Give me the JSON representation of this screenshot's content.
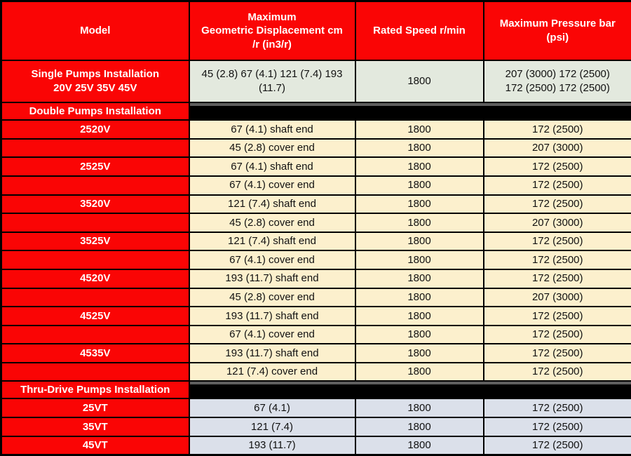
{
  "colors": {
    "header_red": "#fa0505",
    "section_black": "#000000",
    "section_highlight": "#5e5e5e",
    "single_row_bg": "#e3e9de",
    "double_rows_bg": "#fcf0cd",
    "thru_rows_bg": "#dbe0ea",
    "border": "#000000",
    "header_text": "#ffffff",
    "cell_text": "#111111"
  },
  "table": {
    "headers": [
      "Model",
      "Maximum\nGeometric Displacement cm\n/r (in3/r)",
      "Rated Speed r/min",
      "Maximum Pressure bar\n(psi)"
    ],
    "rows": [
      {
        "type": "single",
        "model": "Single Pumps Installation\n20V 25V 35V 45V",
        "displacement": "45 (2.8) 67 (4.1) 121 (7.4) 193\n(11.7)",
        "speed": "1800",
        "pressure": "207 (3000) 172 (2500)\n172 (2500) 172 (2500)"
      },
      {
        "type": "section",
        "model": "Double Pumps Installation"
      },
      {
        "type": "data",
        "theme": "cream",
        "model": "2520V",
        "displacement": "67 (4.1) shaft end",
        "speed": "1800",
        "pressure": "172 (2500)"
      },
      {
        "type": "data",
        "theme": "cream",
        "model": "",
        "displacement": "45 (2.8) cover end",
        "speed": "1800",
        "pressure": "207 (3000)"
      },
      {
        "type": "data",
        "theme": "cream",
        "model": "2525V",
        "displacement": "67 (4.1) shaft end",
        "speed": "1800",
        "pressure": "172 (2500)"
      },
      {
        "type": "data",
        "theme": "cream",
        "model": "",
        "displacement": "67 (4.1) cover end",
        "speed": "1800",
        "pressure": "172 (2500)"
      },
      {
        "type": "data",
        "theme": "cream",
        "model": "3520V",
        "displacement": "121 (7.4) shaft end",
        "speed": "1800",
        "pressure": "172 (2500)"
      },
      {
        "type": "data",
        "theme": "cream",
        "model": "",
        "displacement": "45 (2.8) cover end",
        "speed": "1800",
        "pressure": "207 (3000)"
      },
      {
        "type": "data",
        "theme": "cream",
        "model": "3525V",
        "displacement": "121 (7.4) shaft end",
        "speed": "1800",
        "pressure": "172 (2500)"
      },
      {
        "type": "data",
        "theme": "cream",
        "model": "",
        "displacement": "67 (4.1) cover end",
        "speed": "1800",
        "pressure": "172 (2500)"
      },
      {
        "type": "data",
        "theme": "cream",
        "model": "4520V",
        "displacement": "193 (11.7) shaft end",
        "speed": "1800",
        "pressure": "172 (2500)"
      },
      {
        "type": "data",
        "theme": "cream",
        "model": "",
        "displacement": "45 (2.8) cover end",
        "speed": "1800",
        "pressure": "207 (3000)"
      },
      {
        "type": "data",
        "theme": "cream",
        "model": "4525V",
        "displacement": "193 (11.7) shaft end",
        "speed": "1800",
        "pressure": "172 (2500)"
      },
      {
        "type": "data",
        "theme": "cream",
        "model": "",
        "displacement": "67 (4.1) cover end",
        "speed": "1800",
        "pressure": "172 (2500)"
      },
      {
        "type": "data",
        "theme": "cream",
        "model": "4535V",
        "displacement": "193 (11.7) shaft end",
        "speed": "1800",
        "pressure": "172 (2500)"
      },
      {
        "type": "data",
        "theme": "cream",
        "model": "",
        "displacement": "121 (7.4) cover end",
        "speed": "1800",
        "pressure": "172 (2500)"
      },
      {
        "type": "section",
        "model": "Thru-Drive Pumps Installation"
      },
      {
        "type": "data",
        "theme": "blue",
        "model": "25VT",
        "displacement": "67 (4.1)",
        "speed": "1800",
        "pressure": "172 (2500)"
      },
      {
        "type": "data",
        "theme": "blue",
        "model": "35VT",
        "displacement": "121 (7.4)",
        "speed": "1800",
        "pressure": "172 (2500)"
      },
      {
        "type": "data",
        "theme": "blue",
        "model": "45VT",
        "displacement": "193 (11.7)",
        "speed": "1800",
        "pressure": "172 (2500)"
      }
    ]
  }
}
